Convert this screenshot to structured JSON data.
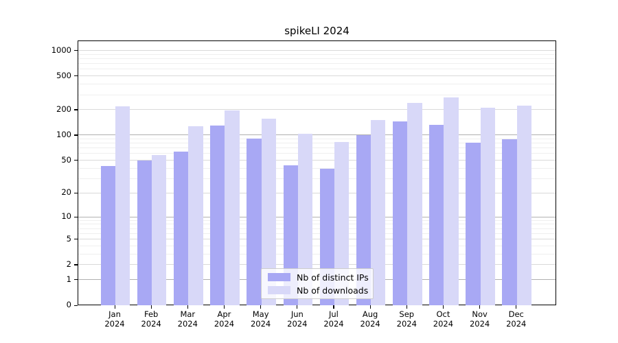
{
  "chart_data": {
    "type": "bar",
    "title": "spikeLI 2024",
    "categories": [
      "Jan",
      "Feb",
      "Mar",
      "Apr",
      "May",
      "Jun",
      "Jul",
      "Aug",
      "Sep",
      "Oct",
      "Nov",
      "Dec"
    ],
    "category_year": "2024",
    "series": [
      {
        "name": "Nb of distinct IPs",
        "color": "#a8a8f4",
        "values": [
          43,
          50,
          64,
          131,
          92,
          44,
          40,
          100,
          146,
          134,
          82,
          90
        ]
      },
      {
        "name": "Nb of downloads",
        "color": "#d8d8f8",
        "values": [
          220,
          58,
          128,
          196,
          158,
          105,
          84,
          153,
          245,
          280,
          212,
          225
        ]
      }
    ],
    "yscale": "log1p",
    "yticks": [
      0,
      1,
      2,
      5,
      10,
      20,
      50,
      100,
      200,
      500,
      1000
    ],
    "ylim": [
      0,
      1300
    ],
    "grid": true,
    "legend_position": "lower center",
    "colors": {
      "major_grid": "#b0b0b0",
      "labeled_minor_grid": "#d9d9d9",
      "minor_grid": "#efefef",
      "axis": "#000000",
      "legend_border": "#cccccc"
    }
  }
}
